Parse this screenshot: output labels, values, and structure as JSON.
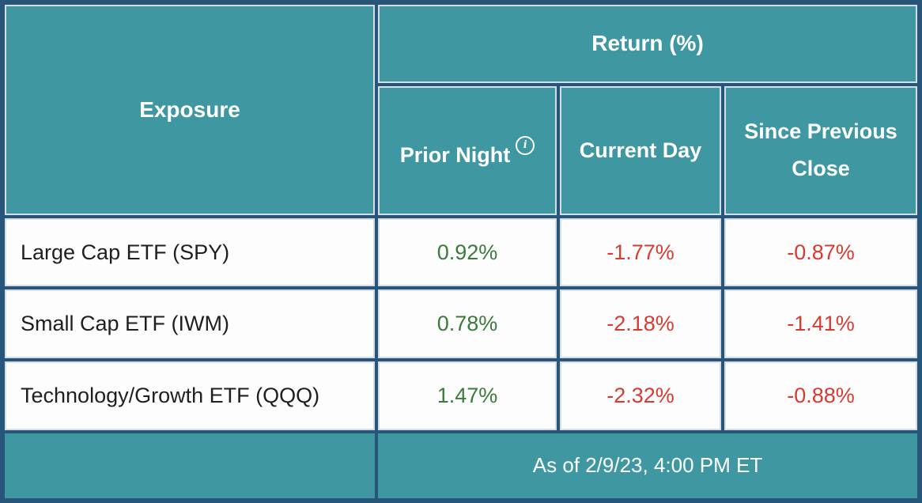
{
  "chart_data": {
    "type": "table",
    "row_header": "Exposure",
    "column_group": "Return (%)",
    "columns": [
      "Prior Night",
      "Current Day",
      "Since Previous Close"
    ],
    "rows": [
      {
        "label": "Large Cap ETF (SPY)",
        "values": [
          "0.92%",
          "-1.77%",
          "-0.87%"
        ]
      },
      {
        "label": "Small Cap ETF (IWM)",
        "values": [
          "0.78%",
          "-2.18%",
          "-1.41%"
        ]
      },
      {
        "label": "Technology/Growth ETF (QQQ)",
        "values": [
          "1.47%",
          "-2.32%",
          "-0.88%"
        ]
      }
    ],
    "footer": "As of 2/9/23, 4:00 PM ET",
    "value_color_rule": "negative values red, positive values green"
  },
  "icons": {
    "info": "i"
  },
  "colors": {
    "teal": "#3f97a2",
    "border_dark": "#27567a",
    "border_light": "#d5dee6",
    "positive": "#3a7a3b",
    "negative": "#d93a2f",
    "text_dark": "#1f1f1d"
  }
}
